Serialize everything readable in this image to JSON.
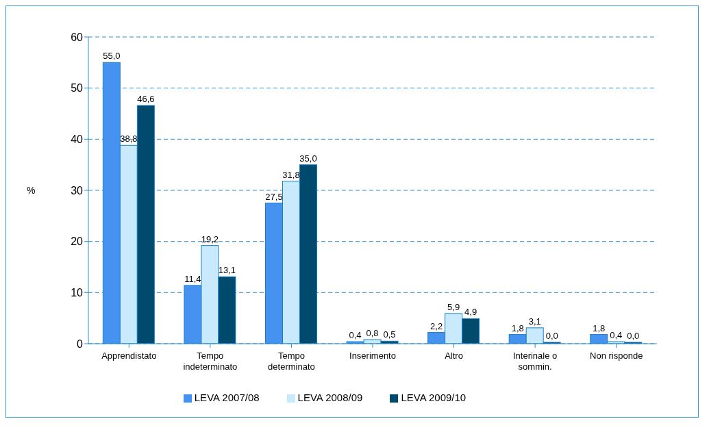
{
  "chart_data": {
    "type": "bar",
    "ylabel": "%",
    "categories": [
      "Apprendistato",
      "Tempo indeterminato",
      "Tempo determinato",
      "Inserimento",
      "Altro",
      "Interinale o sommin.",
      "Non risponde"
    ],
    "series": [
      {
        "name": "LEVA 2007/08",
        "color": "#4592f0",
        "values": [
          55.0,
          11.4,
          27.5,
          0.4,
          2.2,
          1.8,
          1.8
        ],
        "value_labels": [
          "55,0",
          "11,4",
          "27,5",
          "0,4",
          "2,2",
          "1,8",
          "1,8"
        ]
      },
      {
        "name": "LEVA 2008/09",
        "color": "#c9eafc",
        "values": [
          38.8,
          19.2,
          31.8,
          0.8,
          5.9,
          3.1,
          0.4
        ],
        "value_labels": [
          "38,8",
          "19,2",
          "31,8",
          "0,8",
          "5,9",
          "3,1",
          "0,4"
        ]
      },
      {
        "name": "LEVA 2009/10",
        "color": "#004a6e",
        "values": [
          46.6,
          13.1,
          35.0,
          0.5,
          4.9,
          0.0,
          0.0
        ],
        "value_labels": [
          "46,6",
          "13,1",
          "35,0",
          "0,5",
          "4,9",
          "0,0",
          "0,0"
        ]
      }
    ],
    "ylim": [
      0,
      60
    ],
    "yticks": [
      0,
      10,
      20,
      30,
      40,
      50,
      60
    ],
    "grid": "y",
    "legend": "bottom"
  }
}
